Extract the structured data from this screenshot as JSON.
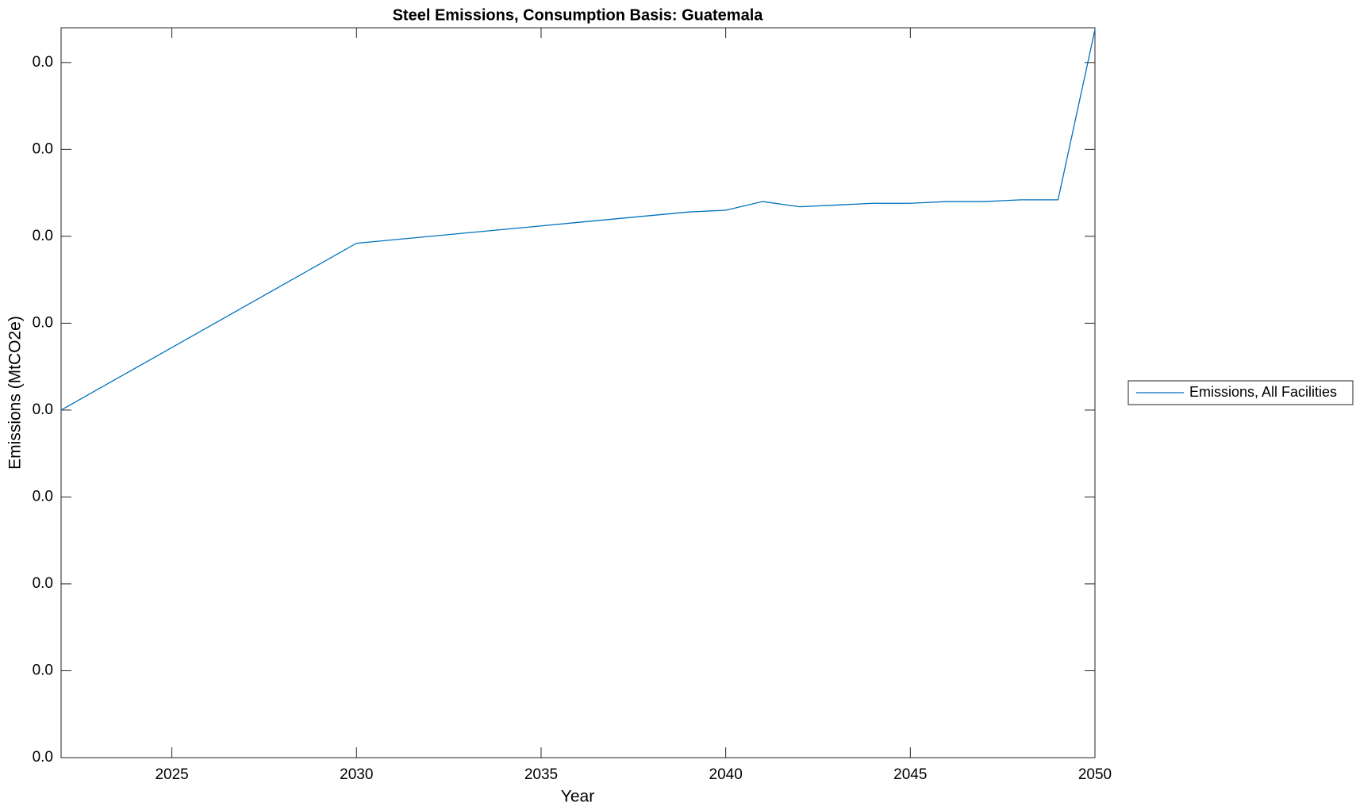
{
  "chart_data": {
    "type": "line",
    "title": "Steel Emissions, Consumption Basis: Guatemala",
    "x_label": "Year",
    "y_label": "Emissions (MtCO2e)",
    "x": [
      2022,
      2023,
      2024,
      2025,
      2026,
      2027,
      2028,
      2029,
      2030,
      2031,
      2032,
      2033,
      2034,
      2035,
      2036,
      2037,
      2038,
      2039,
      2040,
      2041,
      2042,
      2043,
      2044,
      2045,
      2046,
      2047,
      2048,
      2049,
      2050
    ],
    "series": [
      {
        "name": "Emissions, All Facilities",
        "color": "#0072bd",
        "values": [
          0.02,
          0.0212,
          0.0224,
          0.0236,
          0.0248,
          0.026,
          0.0272,
          0.0284,
          0.0296,
          0.0298,
          0.03,
          0.0302,
          0.0304,
          0.0306,
          0.0308,
          0.031,
          0.0312,
          0.0314,
          0.0315,
          0.032,
          0.0317,
          0.0318,
          0.0319,
          0.0319,
          0.032,
          0.032,
          0.0321,
          0.0321,
          0.0419
        ]
      }
    ],
    "xlim": [
      2022,
      2050
    ],
    "xticks": [
      2025,
      2030,
      2035,
      2040,
      2045,
      2050
    ],
    "ylim": [
      0,
      0.042
    ],
    "yticks": [
      {
        "value": 0,
        "label": "0.0"
      },
      {
        "value": 0.005,
        "label": "0.0"
      },
      {
        "value": 0.01,
        "label": "0.0"
      },
      {
        "value": 0.015,
        "label": "0.0"
      },
      {
        "value": 0.02,
        "label": "0.0"
      },
      {
        "value": 0.025,
        "label": "0.0"
      },
      {
        "value": 0.03,
        "label": "0.0"
      },
      {
        "value": 0.035,
        "label": "0.0"
      },
      {
        "value": 0.04,
        "label": "0.0"
      }
    ],
    "grid": false,
    "legend": "outside-right"
  }
}
